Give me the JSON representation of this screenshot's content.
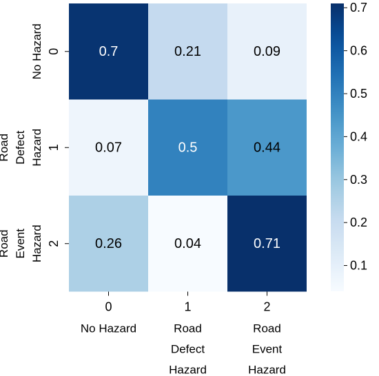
{
  "chart_data": {
    "type": "heatmap",
    "title": "",
    "xlabel": "",
    "ylabel": "",
    "x_ticks": [
      "0",
      "1",
      "2"
    ],
    "x_tick_names": [
      [
        "No Hazard"
      ],
      [
        "Road",
        "Defect",
        "Hazard"
      ],
      [
        "Road",
        "Event",
        "Hazard"
      ]
    ],
    "y_ticks": [
      "0",
      "1",
      "2"
    ],
    "y_tick_names": [
      [
        "No Hazard"
      ],
      [
        "Road",
        "Defect",
        "Hazard"
      ],
      [
        "Road",
        "Event",
        "Hazard"
      ]
    ],
    "values": [
      [
        0.7,
        0.21,
        0.09
      ],
      [
        0.07,
        0.5,
        0.44
      ],
      [
        0.26,
        0.04,
        0.71
      ]
    ],
    "cell_labels": [
      [
        "0.7",
        "0.21",
        "0.09"
      ],
      [
        "0.07",
        "0.5",
        "0.44"
      ],
      [
        "0.26",
        "0.04",
        "0.71"
      ]
    ],
    "colormap": "Blues",
    "colorbar": {
      "min": 0.04,
      "max": 0.71,
      "ticks": [
        0.1,
        0.2,
        0.3,
        0.4,
        0.5,
        0.6,
        0.7
      ],
      "tick_labels": [
        "0.1",
        "0.2",
        "0.3",
        "0.4",
        "0.5",
        "0.6",
        "0.7"
      ]
    },
    "colors": {
      "low": "#f7fbff",
      "high": "#08306b",
      "text_dark": "#000000",
      "text_light": "#ffffff"
    }
  }
}
